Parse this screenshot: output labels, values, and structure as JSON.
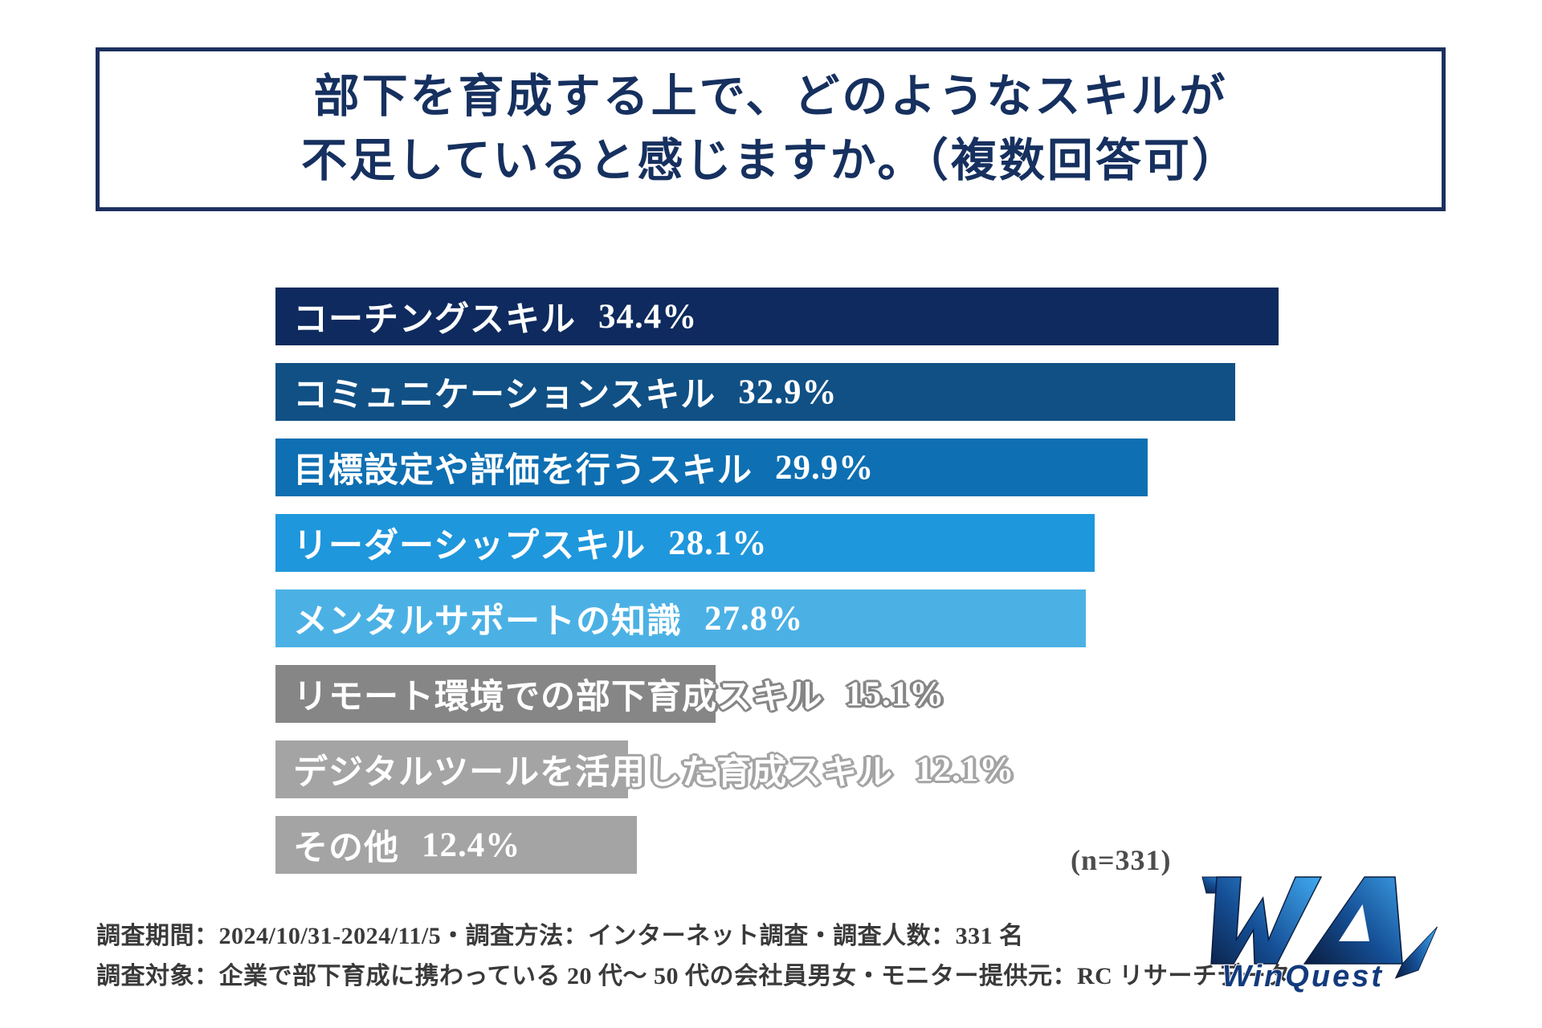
{
  "title": {
    "line1": "部下を育成する上で、どのようなスキルが",
    "line2": "不足していると感じますか。（複数回答可）"
  },
  "chart_data": {
    "type": "bar",
    "orientation": "horizontal",
    "title": "部下を育成する上で、どのようなスキルが不足していると感じますか。（複数回答可）",
    "categories": [
      "コーチングスキル",
      "コミュニケーションスキル",
      "目標設定や評価を行うスキル",
      "リーダーシップスキル",
      "メンタルサポートの知識",
      "リモート環境での部下育成スキル",
      "デジタルツールを活用した育成スキル",
      "その他"
    ],
    "values": [
      34.4,
      32.9,
      29.9,
      28.1,
      27.8,
      15.1,
      12.1,
      12.4
    ],
    "unit": "%",
    "bar_colors": [
      "#0e2a5e",
      "#105085",
      "#0e6fb2",
      "#1f97dc",
      "#4bb1e5",
      "#868686",
      "#a4a4a4",
      "#a4a4a4"
    ],
    "xlim": [
      0,
      34.4
    ],
    "grid": false,
    "legend": false,
    "value_labels": "inside-bar-inline",
    "sample_note": "(n=331)"
  },
  "footer": {
    "line1": "調査期間：2024/10/31-2024/11/5・調査方法：インターネット調査・調査人数：331 名",
    "line2": "調査対象：企業で部下育成に携わっている 20 代〜 50 代の会社員男女・モニター提供元：RC リサーチデータ"
  },
  "logo": {
    "text": "WinQuest"
  },
  "colors": {
    "title_text": "#16305f",
    "title_border": "#1c2f5e",
    "note_text": "#4d4d4d",
    "footer_text": "#3a3a3a",
    "logo_dark": "#0a1c3e",
    "logo_mid": "#154f96",
    "logo_bright": "#41aaf0",
    "logo_text": "#123a7d"
  }
}
